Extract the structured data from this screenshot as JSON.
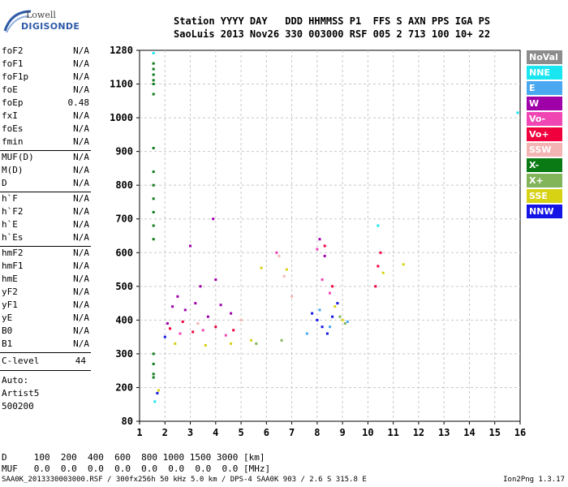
{
  "logo": {
    "line1": "Lowell",
    "line2": "DIGISONDE"
  },
  "header": {
    "row1": "Station YYYY DAY   DDD HHMMSS P1  FFS S AXN PPS IGA PS",
    "row2": "SaoLuis 2013 Nov26 330 003000 RSF 005 2 713 100 10+ 22"
  },
  "params": {
    "group1": [
      {
        "name": "foF2",
        "value": "N/A"
      },
      {
        "name": "foF1",
        "value": "N/A"
      },
      {
        "name": "foF1p",
        "value": "N/A"
      },
      {
        "name": "foE",
        "value": "N/A"
      },
      {
        "name": "foEp",
        "value": "0.48"
      },
      {
        "name": "fxI",
        "value": "N/A"
      },
      {
        "name": "foEs",
        "value": "N/A"
      },
      {
        "name": "fmin",
        "value": "N/A"
      }
    ],
    "group2": [
      {
        "name": "MUF(D)",
        "value": "N/A"
      },
      {
        "name": "M(D)",
        "value": "N/A"
      },
      {
        "name": "D",
        "value": "N/A"
      }
    ],
    "group3": [
      {
        "name": "h`F",
        "value": "N/A"
      },
      {
        "name": "h`F2",
        "value": "N/A"
      },
      {
        "name": "h`E",
        "value": "N/A"
      },
      {
        "name": "h`Es",
        "value": "N/A"
      }
    ],
    "group4": [
      {
        "name": "hmF2",
        "value": "N/A"
      },
      {
        "name": "hmF1",
        "value": "N/A"
      },
      {
        "name": "hmE",
        "value": "N/A"
      },
      {
        "name": "yF2",
        "value": "N/A"
      },
      {
        "name": "yF1",
        "value": "N/A"
      },
      {
        "name": "yE",
        "value": "N/A"
      },
      {
        "name": "B0",
        "value": "N/A"
      },
      {
        "name": "B1",
        "value": "N/A"
      }
    ],
    "clevel": {
      "name": "C-level",
      "value": "44"
    },
    "auto": [
      "Auto:",
      "Artist5",
      "500200"
    ]
  },
  "legend": [
    {
      "label": "NoVal",
      "color": "#8c8c8c"
    },
    {
      "label": "NNE",
      "color": "#19e6f0"
    },
    {
      "label": "E",
      "color": "#4aa8f0"
    },
    {
      "label": "W",
      "color": "#a000a8"
    },
    {
      "label": "Vo-",
      "color": "#f046b4"
    },
    {
      "label": "Vo+",
      "color": "#f0003c"
    },
    {
      "label": "SSW",
      "color": "#f5b4b4"
    },
    {
      "label": "X-",
      "color": "#0a7a14"
    },
    {
      "label": "X+",
      "color": "#82b45a"
    },
    {
      "label": "SSE",
      "color": "#d7d214"
    },
    {
      "label": "NNW",
      "color": "#1414e6"
    }
  ],
  "footer": {
    "d_row": "D     100  200  400  600  800 1000 1500 3000 [km]",
    "muf_row": "MUF   0.0  0.0  0.0  0.0  0.0  0.0  0.0  0.0 [MHz]",
    "filename": "SAA0K_2013330003000.RSF / 300fx256h 50 kHz 5.0 km / DPS-4 SAA0K 903 / 2.6 S 315.8 E",
    "version": "Ion2Png 1.3.17"
  },
  "chart_data": {
    "type": "scatter",
    "title": "",
    "xlabel": "",
    "ylabel": "",
    "xlim": [
      1,
      16
    ],
    "ylim": [
      80,
      1280
    ],
    "x_ticks": [
      1,
      2,
      3,
      4,
      5,
      6,
      7,
      8,
      9,
      10,
      11,
      12,
      13,
      14,
      15,
      16
    ],
    "y_ticks": [
      80,
      200,
      300,
      400,
      500,
      600,
      700,
      800,
      900,
      1000,
      1100,
      1280
    ],
    "grid": true,
    "series": [
      {
        "name": "X-",
        "color": "#0a7a14",
        "points": [
          [
            1.55,
            1210
          ],
          [
            1.55,
            1180
          ],
          [
            1.55,
            1150
          ],
          [
            1.55,
            1120
          ],
          [
            1.55,
            1100
          ],
          [
            1.55,
            1070
          ],
          [
            1.55,
            910
          ],
          [
            1.55,
            840
          ],
          [
            1.55,
            800
          ],
          [
            1.55,
            760
          ],
          [
            1.55,
            720
          ],
          [
            1.55,
            680
          ],
          [
            1.55,
            640
          ],
          [
            1.55,
            300
          ],
          [
            1.55,
            270
          ],
          [
            1.55,
            240
          ],
          [
            1.55,
            230
          ]
        ]
      },
      {
        "name": "NNE",
        "color": "#19e6f0",
        "points": [
          [
            1.55,
            1265
          ],
          [
            10.4,
            680
          ],
          [
            15.9,
            1015
          ],
          [
            1.6,
            150
          ]
        ]
      },
      {
        "name": "W",
        "color": "#a000a8",
        "points": [
          [
            2.3,
            440
          ],
          [
            2.8,
            430
          ],
          [
            3.2,
            450
          ],
          [
            3.7,
            410
          ],
          [
            4.2,
            445
          ],
          [
            4.6,
            420
          ],
          [
            2.5,
            470
          ],
          [
            3.4,
            500
          ],
          [
            4.0,
            520
          ],
          [
            8.1,
            640
          ],
          [
            8.3,
            590
          ],
          [
            2.1,
            390
          ],
          [
            3.0,
            620
          ],
          [
            3.9,
            700
          ]
        ]
      },
      {
        "name": "Vo-",
        "color": "#f046b4",
        "points": [
          [
            2.6,
            360
          ],
          [
            3.5,
            370
          ],
          [
            4.4,
            355
          ],
          [
            8.2,
            520
          ],
          [
            8.5,
            480
          ],
          [
            6.4,
            600
          ],
          [
            8.0,
            610
          ]
        ]
      },
      {
        "name": "Vo+",
        "color": "#f0003c",
        "points": [
          [
            2.2,
            375
          ],
          [
            3.1,
            365
          ],
          [
            4.0,
            380
          ],
          [
            4.7,
            370
          ],
          [
            8.3,
            620
          ],
          [
            8.6,
            500
          ],
          [
            10.4,
            560
          ],
          [
            10.3,
            500
          ],
          [
            10.5,
            600
          ],
          [
            2.7,
            395
          ]
        ]
      },
      {
        "name": "SSW",
        "color": "#f5b4b4",
        "points": [
          [
            6.5,
            590
          ],
          [
            6.7,
            530
          ],
          [
            7.0,
            470
          ],
          [
            3.3,
            390
          ],
          [
            5.0,
            400
          ]
        ]
      },
      {
        "name": "X+",
        "color": "#82b45a",
        "points": [
          [
            6.6,
            340
          ],
          [
            5.6,
            330
          ],
          [
            8.9,
            410
          ],
          [
            9.1,
            390
          ]
        ]
      },
      {
        "name": "SSE",
        "color": "#d7d214",
        "points": [
          [
            2.4,
            330
          ],
          [
            3.6,
            325
          ],
          [
            4.6,
            330
          ],
          [
            5.4,
            340
          ],
          [
            5.8,
            555
          ],
          [
            6.8,
            550
          ],
          [
            9.0,
            400
          ],
          [
            8.7,
            440
          ],
          [
            1.75,
            190
          ],
          [
            10.6,
            540
          ],
          [
            11.4,
            565
          ]
        ]
      },
      {
        "name": "NNW",
        "color": "#1414e6",
        "points": [
          [
            8.0,
            400
          ],
          [
            8.2,
            380
          ],
          [
            8.4,
            360
          ],
          [
            8.6,
            410
          ],
          [
            7.8,
            420
          ],
          [
            8.8,
            450
          ],
          [
            2.0,
            350
          ],
          [
            1.7,
            180
          ]
        ]
      },
      {
        "name": "E",
        "color": "#4aa8f0",
        "points": [
          [
            7.6,
            360
          ],
          [
            8.1,
            430
          ],
          [
            8.5,
            380
          ],
          [
            9.2,
            395
          ]
        ]
      }
    ]
  }
}
